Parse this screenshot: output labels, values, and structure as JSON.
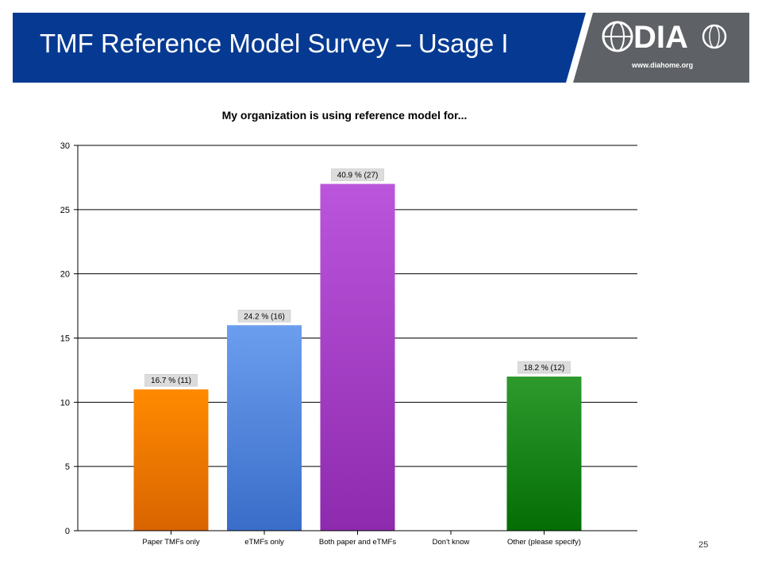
{
  "slide": {
    "title": "TMF Reference Model Survey – Usage I",
    "logo_url_text": "www.diahome.org",
    "logo_letters": "DIA",
    "page_number": "25"
  },
  "colors": {
    "header_blue": "#063a92",
    "header_gray": "#5e6165",
    "bar_paper": "#f07d00",
    "bar_etmf": "#4a82dc",
    "bar_both": "#a23fc6",
    "bar_dontknow": "#888888",
    "bar_other": "#1c8a1c"
  },
  "chart_data": {
    "type": "bar",
    "title": "My organization is using reference model for...",
    "categories": [
      "Paper TMFs only",
      "eTMFs only",
      "Both paper and eTMFs",
      "Don't know",
      "Other (please specify)"
    ],
    "values": [
      11,
      16,
      27,
      0,
      12
    ],
    "data_labels": [
      "16.7 % (11)",
      "24.2 % (16)",
      "40.9 % (27)",
      "",
      "18.2 % (12)"
    ],
    "ylim": [
      0,
      30
    ],
    "yticks": [
      "0",
      "5",
      "10",
      "15",
      "20",
      "25",
      "30"
    ],
    "grid": true,
    "xlabel": "",
    "ylabel": ""
  }
}
